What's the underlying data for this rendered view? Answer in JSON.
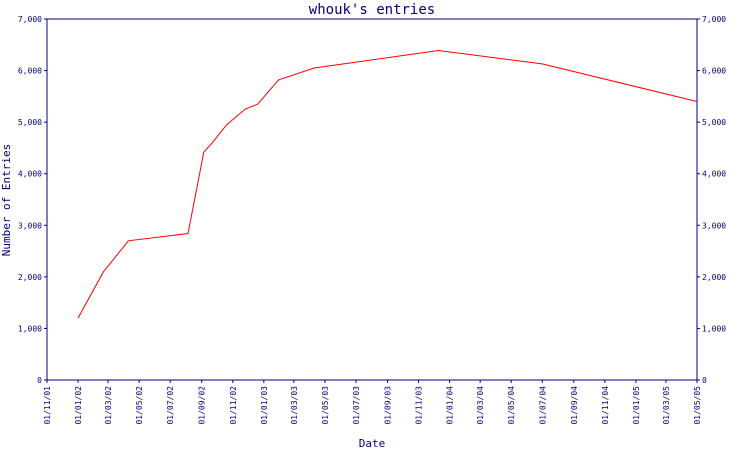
{
  "chart_data": {
    "type": "line",
    "title": "whouk's entries",
    "xlabel": "Date",
    "ylabel": "Number of Entries",
    "ylim": [
      0,
      7000
    ],
    "y_ticks": [
      0,
      1000,
      2000,
      3000,
      4000,
      5000,
      6000,
      7000
    ],
    "y_tick_labels": [
      "0",
      "1,000",
      "2,000",
      "3,000",
      "4,000",
      "5,000",
      "6,000",
      "7,000"
    ],
    "x_range": [
      "2001-11-01",
      "2005-05-01"
    ],
    "x_ticks": [
      "2001-11-01",
      "2002-01-01",
      "2002-03-01",
      "2002-05-01",
      "2002-07-01",
      "2002-09-01",
      "2002-11-01",
      "2003-01-01",
      "2003-03-01",
      "2003-05-01",
      "2003-07-01",
      "2003-09-01",
      "2003-11-01",
      "2004-01-01",
      "2004-03-01",
      "2004-05-01",
      "2004-07-01",
      "2004-09-01",
      "2004-11-01",
      "2005-01-01",
      "2005-03-01",
      "2005-05-01"
    ],
    "x_tick_labels": [
      "01/11/01",
      "01/01/02",
      "01/03/02",
      "01/05/02",
      "01/07/02",
      "01/09/02",
      "01/11/02",
      "01/01/03",
      "01/03/03",
      "01/05/03",
      "01/07/03",
      "01/09/03",
      "01/11/03",
      "01/01/04",
      "01/03/04",
      "01/05/04",
      "01/07/04",
      "01/09/04",
      "01/11/04",
      "01/01/05",
      "01/03/05",
      "01/05/05"
    ],
    "grid": false,
    "colors": {
      "axis": "#000080",
      "line": "#ff0000"
    },
    "series": [
      {
        "color": "#ff0000",
        "points": [
          [
            "2002-01-01",
            1200
          ],
          [
            "2002-02-20",
            2100
          ],
          [
            "2002-04-10",
            2700
          ],
          [
            "2002-08-05",
            2840
          ],
          [
            "2002-09-05",
            4420
          ],
          [
            "2002-09-20",
            4580
          ],
          [
            "2002-10-20",
            4950
          ],
          [
            "2002-11-25",
            5250
          ],
          [
            "2002-12-20",
            5350
          ],
          [
            "2003-01-30",
            5820
          ],
          [
            "2003-04-10",
            6050
          ],
          [
            "2003-12-10",
            6390
          ],
          [
            "2004-07-01",
            6130
          ],
          [
            "2005-05-01",
            5400
          ]
        ]
      }
    ]
  }
}
